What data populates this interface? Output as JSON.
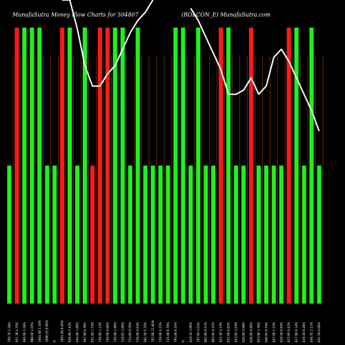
{
  "title_left": "MunafaSutra  Money Flow  Charts for 504807",
  "title_right": "(ROLCON_E)    MunafaSutra.com",
  "colors": {
    "background": "#000000",
    "up_bar": "#1ef21e",
    "down_bar": "#ff1a1a",
    "line": "#ffffff",
    "grid": "#7a3a00"
  },
  "chart_data": {
    "type": "bar",
    "grid": true,
    "ylim": [
      0,
      100
    ],
    "line_ylim": [
      0,
      100
    ],
    "categories": [
      "760.70 1.28%",
      "931.30 4.35%",
      "966.00 3.28%",
      "988.00 1.05%",
      "1001.00 1.10%",
      "1000.25 0.08%",
      "0",
      "1001.00 0.08%",
      "926.80 7.42%",
      "944.00 1.86%",
      "947.60 0.38%",
      "931.00 1.75%",
      "750.00 1.13%",
      "750.00 0.00%",
      "736.00 1.90%",
      "728.65 1.00%",
      "724.60 0.56%",
      "720.00 0.64%",
      "681.50 5.35%",
      "762.00 11.80%",
      "729.90 4.21%",
      "735.00 0.70%",
      "795.00 8.16%",
      "0",
      "819.35 3.06%",
      "797.95 2.61%",
      "802.00 0.51%",
      "804.95 0.37%",
      "825.30 2.53%",
      "832.00 0.81%",
      "853.95 2.64%",
      "820.00 3.98%",
      "820.00 0.00%",
      "833.90 1.70%",
      "840.05 0.74%",
      "827.00 1.55%",
      "819.30 0.93%",
      "815.85 0.42%",
      "817.00 0.14%",
      "819.30 0.28%",
      "836.55 2.11%",
      "831.50 0.60%"
    ],
    "series": [
      {
        "values": [
          50,
          100,
          100,
          100,
          100,
          50,
          50,
          100,
          100,
          50,
          100,
          50,
          100,
          100,
          100,
          100,
          50,
          100,
          50,
          50,
          50,
          50,
          100,
          100,
          50,
          100,
          50,
          50,
          100,
          100,
          50,
          50,
          100,
          50,
          50,
          50,
          50,
          100,
          100,
          50,
          100,
          50
        ],
        "direction": [
          "up",
          "down",
          "up",
          "up",
          "up",
          "up",
          "up",
          "down",
          "up",
          "up",
          "up",
          "down",
          "down",
          "down",
          "up",
          "up",
          "up",
          "up",
          "up",
          "up",
          "up",
          "up",
          "up",
          "up",
          "up",
          "up",
          "up",
          "up",
          "down",
          "up",
          "up",
          "up",
          "down",
          "up",
          "up",
          "up",
          "up",
          "down",
          "up",
          "up",
          "up",
          "up"
        ]
      }
    ],
    "line": {
      "values": [
        null,
        null,
        null,
        null,
        null,
        null,
        null,
        100,
        100,
        93,
        84,
        79,
        79,
        82,
        84,
        88,
        92,
        95,
        97,
        100,
        null,
        null,
        null,
        null,
        98,
        95,
        91,
        87,
        83,
        77,
        77,
        78,
        81,
        77,
        79,
        86,
        88,
        85,
        81,
        77,
        73,
        68
      ]
    }
  }
}
